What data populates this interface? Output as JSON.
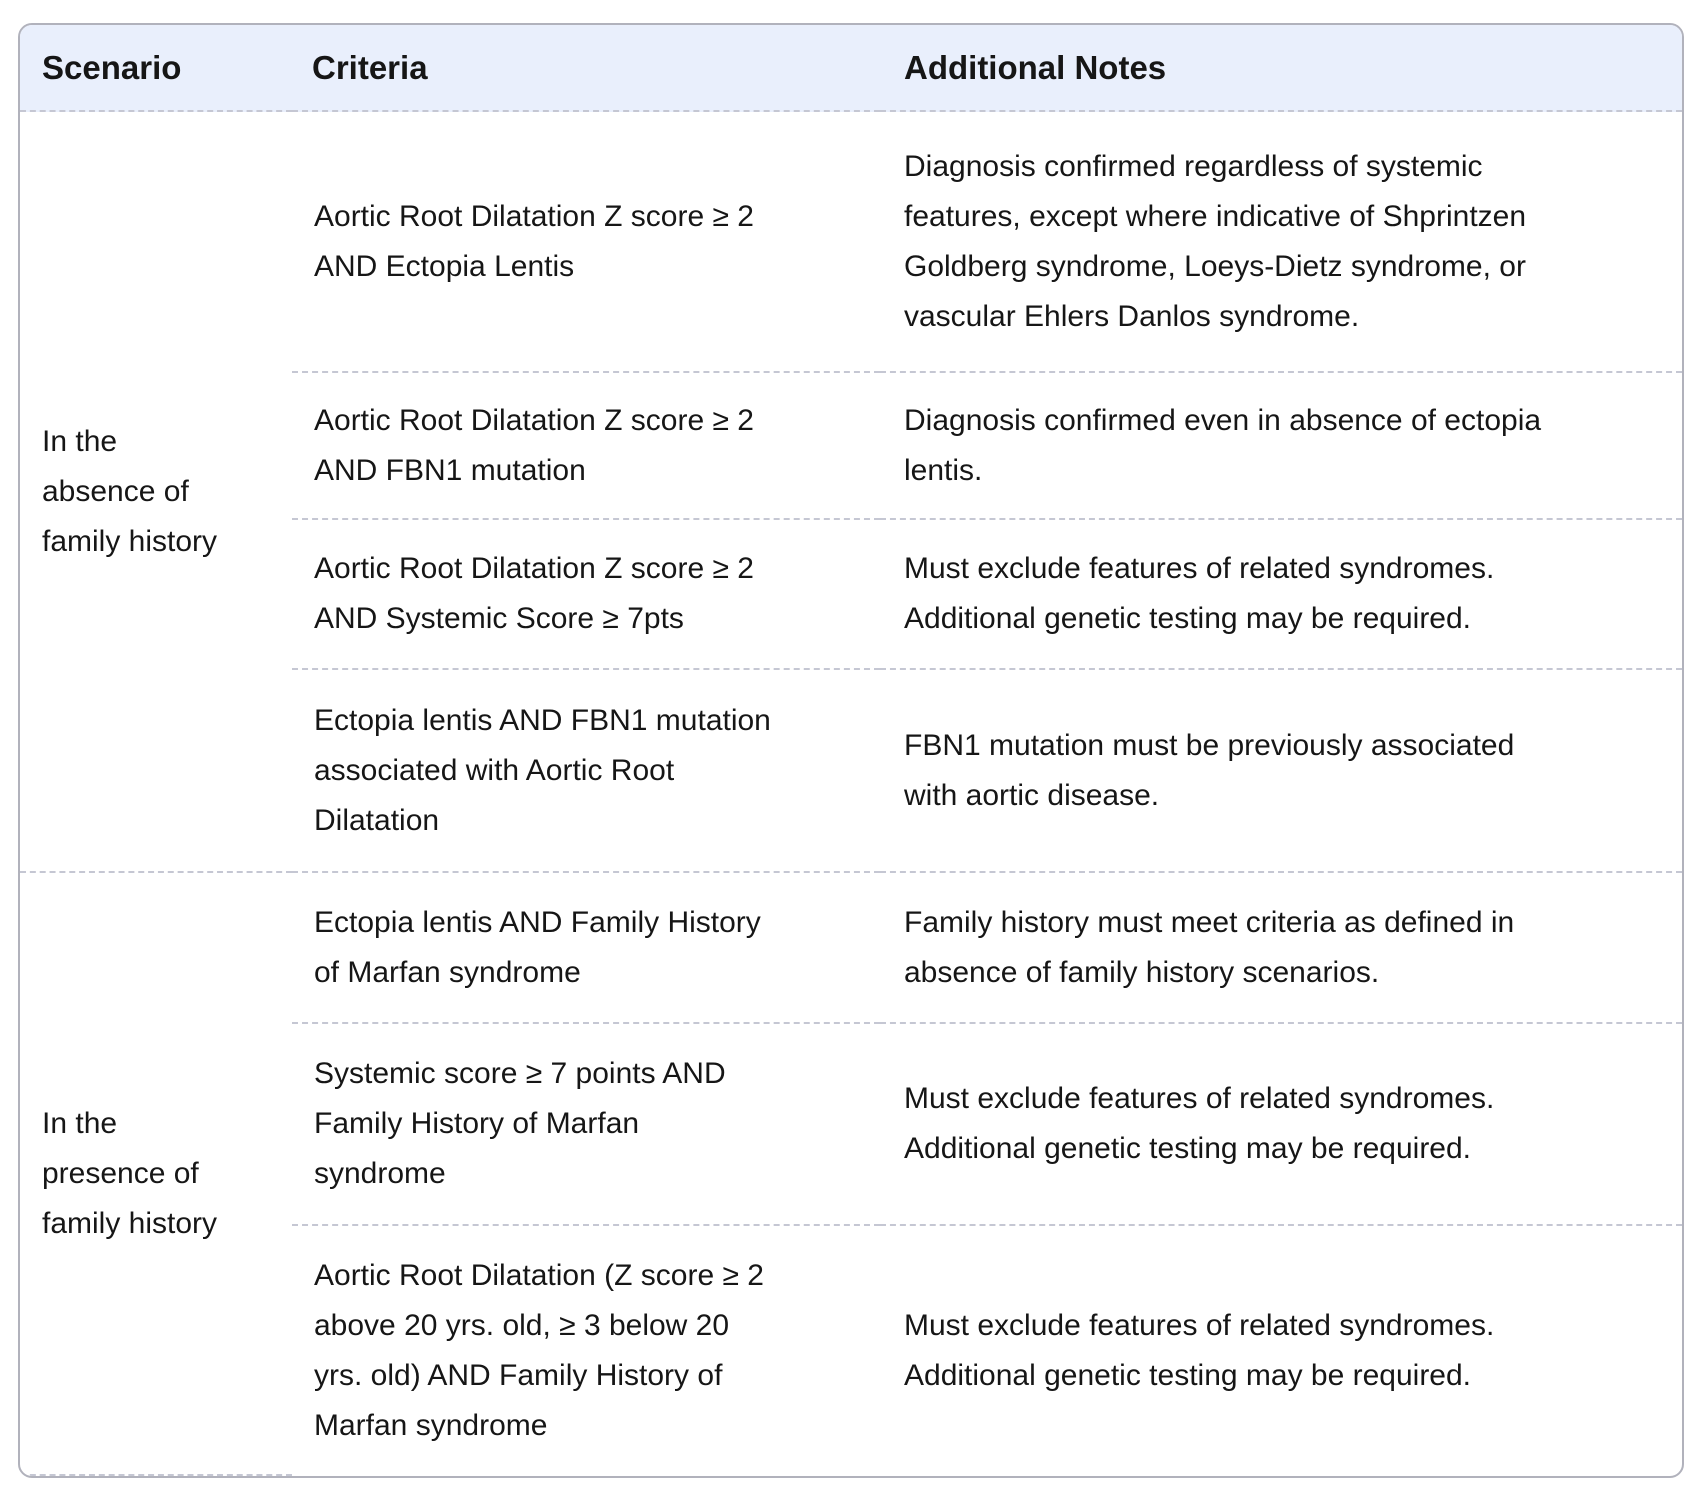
{
  "table": {
    "columns": {
      "scenario": "Scenario",
      "criteria": "Criteria",
      "notes": "Additional Notes"
    },
    "groups": [
      {
        "scenario": "In the\nabsence of\nfamily history",
        "rows": [
          {
            "criteria": "Aortic Root Dilatation Z score ≥ 2\nAND Ectopia Lentis",
            "notes": "Diagnosis confirmed regardless of systemic\nfeatures, except where indicative of Shprintzen\nGoldberg syndrome, Loeys-Dietz syndrome, or\nvascular Ehlers Danlos syndrome."
          },
          {
            "criteria": "Aortic Root Dilatation Z score ≥ 2\nAND FBN1 mutation",
            "notes": "Diagnosis confirmed even in absence of ectopia\nlentis."
          },
          {
            "criteria": "Aortic Root Dilatation Z score ≥ 2\nAND Systemic Score ≥ 7pts",
            "notes": "Must exclude features of related syndromes.\nAdditional genetic testing may be required."
          },
          {
            "criteria": "Ectopia lentis AND FBN1 mutation\nassociated with Aortic Root\nDilatation",
            "notes": "FBN1 mutation must be previously associated\nwith aortic disease."
          }
        ]
      },
      {
        "scenario": "In the\npresence of\nfamily history",
        "rows": [
          {
            "criteria": "Ectopia lentis AND Family History\nof Marfan syndrome",
            "notes": "Family history must meet criteria as defined in\nabsence of family history scenarios."
          },
          {
            "criteria": "Systemic score ≥ 7 points AND\nFamily History of Marfan\nsyndrome",
            "notes": "Must exclude features of related syndromes.\nAdditional genetic testing may be required."
          },
          {
            "criteria": "Aortic Root Dilatation (Z score ≥ 2\nabove 20 yrs. old, ≥ 3 below 20\nyrs. old) AND Family History of\nMarfan syndrome",
            "notes": "Must exclude features of related syndromes.\nAdditional genetic testing may be required."
          }
        ]
      }
    ],
    "colors": {
      "header_bg": "#e9effc",
      "outer_border": "#b1b2bc",
      "dashed_divider": "#c5c7d3",
      "text": "#161616"
    }
  }
}
